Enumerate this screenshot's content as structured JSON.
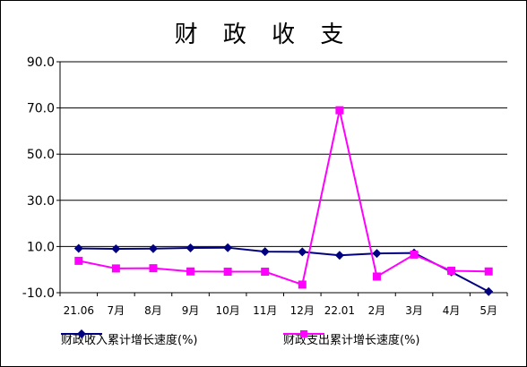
{
  "chart_data": {
    "type": "line",
    "title": "财 政 收 支",
    "categories": [
      "21.06",
      "7月",
      "8月",
      "9月",
      "10月",
      "11月",
      "12月",
      "22.01",
      "2月",
      "3月",
      "4月",
      "5月"
    ],
    "y_ticks": [
      "90.0",
      "70.0",
      "50.0",
      "30.0",
      "10.0",
      "-10.0"
    ],
    "ylim": [
      -10,
      90
    ],
    "grid": true,
    "legend_position": "bottom",
    "series": [
      {
        "name": "财政收入累计增长速度(%)",
        "color": "#000080",
        "marker": "diamond",
        "values": [
          9.2,
          9.0,
          9.1,
          9.4,
          9.5,
          7.8,
          7.7,
          6.2,
          7.0,
          7.2,
          -1.0,
          -9.5
        ]
      },
      {
        "name": "财政支出累计增长速度(%)",
        "color": "#FF00FF",
        "marker": "square",
        "values": [
          3.8,
          0.5,
          0.6,
          -0.8,
          -0.9,
          -0.9,
          -6.5,
          69.0,
          -3.0,
          6.5,
          -0.5,
          -0.8
        ]
      }
    ]
  }
}
